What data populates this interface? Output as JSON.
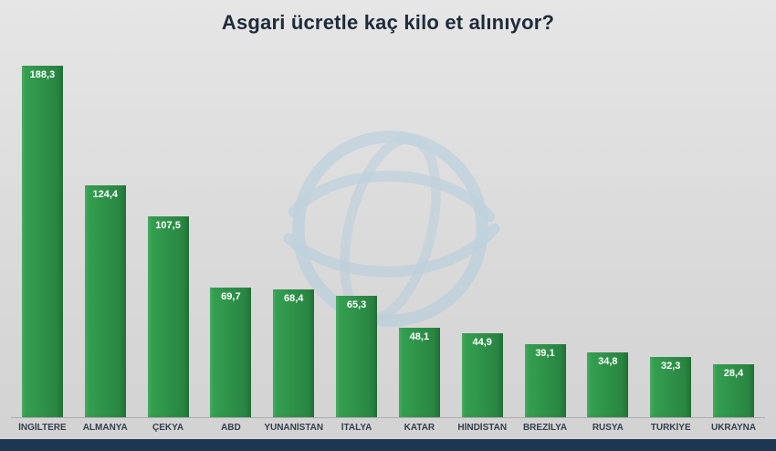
{
  "chart_data": {
    "type": "bar",
    "title": "Asgari ücretle kaç kilo et alınıyor?",
    "categories": [
      "İNGİLTERE",
      "ALMANYA",
      "ÇEKYA",
      "ABD",
      "YUNANİSTAN",
      "İTALYA",
      "KATAR",
      "HİNDİSTAN",
      "BREZİLYA",
      "RUSYA",
      "TÜRKİYE",
      "UKRAYNA"
    ],
    "values": [
      188.3,
      124.4,
      107.5,
      69.7,
      68.4,
      65.3,
      48.1,
      44.9,
      39.1,
      34.8,
      32.3,
      28.4
    ],
    "value_labels": [
      "188,3",
      "124,4",
      "107,5",
      "69,7",
      "68,4",
      "65,3",
      "48,1",
      "44,9",
      "39,1",
      "34,8",
      "32,3",
      "28,4"
    ],
    "xlabel": "",
    "ylabel": "",
    "ylim": [
      0,
      190
    ],
    "grid": false,
    "legend": "none",
    "bar_color_light": "#35a252",
    "bar_color_dark": "#27813f",
    "value_label_color": "#ffffff"
  },
  "colors": {
    "title": "#1e2b3a",
    "category_label": "#333f4d",
    "footer_strip": "#1e3750",
    "baseline": "#adadad",
    "watermark_blue": "#9ec5dd",
    "background_top": "#e6e6e6",
    "background_bottom": "#d2d2d2"
  },
  "watermark": {
    "name": "globe-logo"
  }
}
